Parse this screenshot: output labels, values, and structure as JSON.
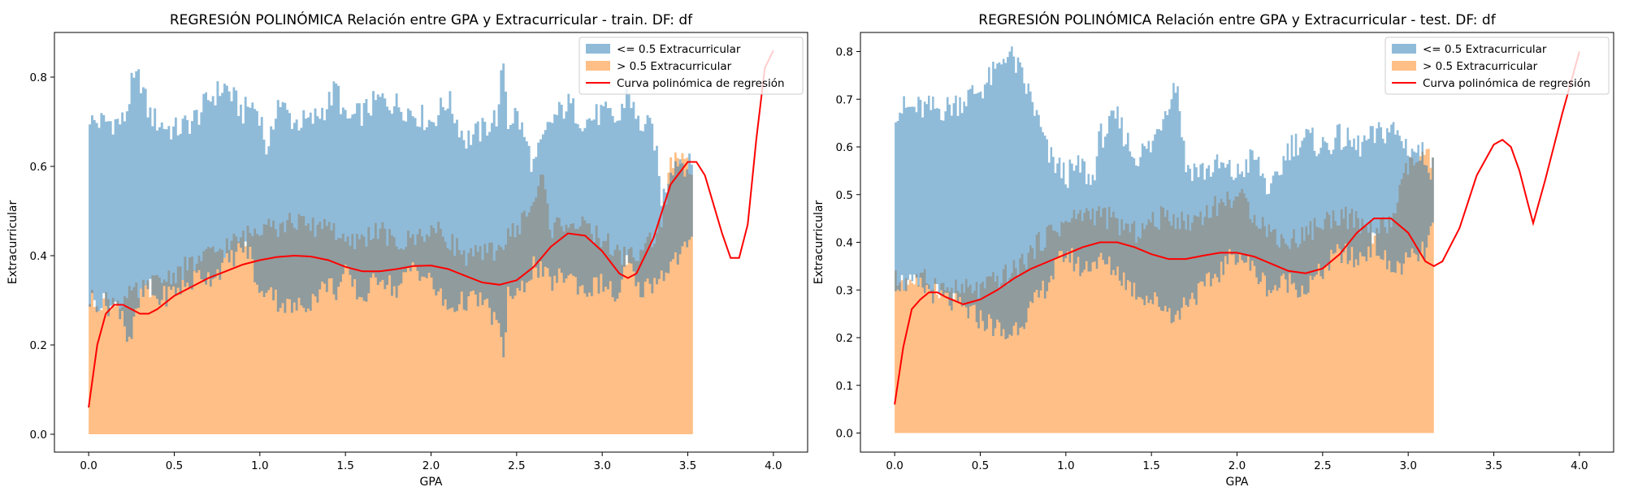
{
  "colors": {
    "blue": "#1f77b4",
    "orange": "#ff7f0e",
    "curve": "#ff0000",
    "overlap": "#c4a07a"
  },
  "chart_data": [
    {
      "type": "area",
      "title": "REGRESIÓN POLINÓMICA Relación entre GPA y Extracurricular - train. DF: df",
      "xlabel": "GPA",
      "ylabel": "Extracurricular",
      "xlim": [
        -0.2,
        4.2
      ],
      "ylim": [
        -0.04,
        0.9
      ],
      "xticks": [
        "0.0",
        "0.5",
        "1.0",
        "1.5",
        "2.0",
        "2.5",
        "3.0",
        "3.5",
        "4.0"
      ],
      "yticks": [
        "0.0",
        "0.2",
        "0.4",
        "0.6",
        "0.8"
      ],
      "grid": false,
      "legend_position": "top-right",
      "legend": [
        "<= 0.5 Extracurricular",
        "> 0.5 Extracurricular",
        "Curva polinómica de regresión"
      ],
      "x_extent": [
        0.0,
        3.53
      ],
      "series": [
        {
          "name": "<= 0.5 Extracurricular",
          "x": [
            0.0,
            0.02,
            0.2,
            0.22,
            0.25,
            0.3,
            0.35,
            0.4,
            0.5,
            0.6,
            0.65,
            0.7,
            0.8,
            0.9,
            0.95,
            1.0,
            1.05,
            1.1,
            1.2,
            1.3,
            1.4,
            1.45,
            1.5,
            1.6,
            1.7,
            1.8,
            1.9,
            2.0,
            2.1,
            2.2,
            2.3,
            2.4,
            2.42,
            2.45,
            2.5,
            2.6,
            2.7,
            2.8,
            2.9,
            3.0,
            3.1,
            3.15,
            3.2,
            3.3,
            3.35,
            3.4,
            3.45,
            3.5,
            3.53
          ],
          "upper": [
            0.72,
            0.7,
            0.7,
            0.72,
            0.78,
            0.8,
            0.72,
            0.7,
            0.68,
            0.7,
            0.72,
            0.75,
            0.78,
            0.72,
            0.74,
            0.72,
            0.62,
            0.75,
            0.7,
            0.7,
            0.74,
            0.78,
            0.7,
            0.72,
            0.75,
            0.74,
            0.72,
            0.7,
            0.75,
            0.66,
            0.68,
            0.72,
            0.86,
            0.7,
            0.72,
            0.6,
            0.7,
            0.74,
            0.7,
            0.72,
            0.7,
            0.78,
            0.7,
            0.68,
            0.52,
            0.6,
            0.62,
            0.6,
            0.6
          ],
          "lower": [
            0.3,
            0.3,
            0.28,
            0.22,
            0.22,
            0.3,
            0.33,
            0.3,
            0.32,
            0.34,
            0.36,
            0.35,
            0.38,
            0.42,
            0.4,
            0.3,
            0.34,
            0.3,
            0.28,
            0.3,
            0.34,
            0.32,
            0.36,
            0.3,
            0.36,
            0.32,
            0.38,
            0.34,
            0.28,
            0.3,
            0.3,
            0.24,
            0.15,
            0.32,
            0.3,
            0.38,
            0.34,
            0.36,
            0.32,
            0.34,
            0.3,
            0.4,
            0.32,
            0.34,
            0.36,
            0.38,
            0.4,
            0.42,
            0.42
          ]
        },
        {
          "name": "> 0.5 Extracurricular",
          "x": [
            0.0,
            0.1,
            0.2,
            0.3,
            0.4,
            0.5,
            0.6,
            0.7,
            0.8,
            0.9,
            1.0,
            1.05,
            1.1,
            1.2,
            1.3,
            1.4,
            1.5,
            1.6,
            1.7,
            1.8,
            1.9,
            2.0,
            2.1,
            2.2,
            2.3,
            2.4,
            2.5,
            2.6,
            2.65,
            2.7,
            2.8,
            2.9,
            3.0,
            3.1,
            3.2,
            3.3,
            3.35,
            3.4,
            3.45,
            3.5,
            3.53
          ],
          "upper": [
            0.3,
            0.3,
            0.3,
            0.32,
            0.34,
            0.36,
            0.38,
            0.4,
            0.42,
            0.44,
            0.46,
            0.5,
            0.46,
            0.48,
            0.46,
            0.48,
            0.42,
            0.44,
            0.46,
            0.42,
            0.44,
            0.46,
            0.44,
            0.4,
            0.4,
            0.42,
            0.46,
            0.52,
            0.58,
            0.46,
            0.48,
            0.46,
            0.44,
            0.4,
            0.4,
            0.44,
            0.48,
            0.6,
            0.62,
            0.6,
            0.58
          ]
        },
        {
          "name": "Curva polinómica de regresión",
          "x": [
            0.0,
            0.05,
            0.1,
            0.15,
            0.2,
            0.25,
            0.3,
            0.35,
            0.4,
            0.5,
            0.6,
            0.7,
            0.8,
            0.9,
            1.0,
            1.1,
            1.2,
            1.3,
            1.4,
            1.5,
            1.6,
            1.7,
            1.8,
            1.9,
            2.0,
            2.1,
            2.2,
            2.3,
            2.4,
            2.5,
            2.6,
            2.7,
            2.8,
            2.9,
            3.0,
            3.1,
            3.15,
            3.2,
            3.3,
            3.4,
            3.5,
            3.55,
            3.6,
            3.7,
            3.75,
            3.8,
            3.85,
            3.9,
            3.95,
            4.0
          ],
          "y": [
            0.06,
            0.2,
            0.27,
            0.29,
            0.29,
            0.28,
            0.27,
            0.27,
            0.28,
            0.31,
            0.33,
            0.35,
            0.365,
            0.38,
            0.39,
            0.397,
            0.4,
            0.398,
            0.39,
            0.375,
            0.365,
            0.365,
            0.37,
            0.377,
            0.378,
            0.37,
            0.355,
            0.34,
            0.335,
            0.345,
            0.375,
            0.42,
            0.45,
            0.445,
            0.41,
            0.36,
            0.35,
            0.36,
            0.44,
            0.56,
            0.61,
            0.61,
            0.58,
            0.45,
            0.395,
            0.395,
            0.47,
            0.66,
            0.82,
            0.86
          ]
        }
      ]
    },
    {
      "type": "area",
      "title": "REGRESIÓN POLINÓMICA Relación entre GPA y Extracurricular - test. DF: df",
      "xlabel": "GPA",
      "ylabel": "Extracurricular",
      "xlim": [
        -0.2,
        4.2
      ],
      "ylim": [
        -0.04,
        0.84
      ],
      "xticks": [
        "0.0",
        "0.5",
        "1.0",
        "1.5",
        "2.0",
        "2.5",
        "3.0",
        "3.5",
        "4.0"
      ],
      "yticks": [
        "0.0",
        "0.1",
        "0.2",
        "0.3",
        "0.4",
        "0.5",
        "0.6",
        "0.7",
        "0.8"
      ],
      "grid": false,
      "legend_position": "top-right",
      "legend": [
        "<= 0.5 Extracurricular",
        "> 0.5 Extracurricular",
        "Curva polinómica de regresión"
      ],
      "x_extent": [
        0.0,
        3.15
      ],
      "series": [
        {
          "name": "<= 0.5 Extracurricular",
          "x": [
            0.0,
            0.2,
            0.3,
            0.4,
            0.5,
            0.6,
            0.65,
            0.7,
            0.8,
            0.9,
            1.0,
            1.1,
            1.15,
            1.2,
            1.3,
            1.4,
            1.5,
            1.6,
            1.65,
            1.7,
            1.8,
            1.9,
            2.0,
            2.1,
            2.2,
            2.3,
            2.4,
            2.5,
            2.6,
            2.7,
            2.8,
            2.9,
            3.0,
            3.1,
            3.15
          ],
          "upper": [
            0.68,
            0.68,
            0.68,
            0.7,
            0.72,
            0.76,
            0.8,
            0.78,
            0.7,
            0.58,
            0.54,
            0.56,
            0.52,
            0.62,
            0.66,
            0.58,
            0.6,
            0.7,
            0.74,
            0.56,
            0.55,
            0.56,
            0.54,
            0.58,
            0.5,
            0.6,
            0.62,
            0.6,
            0.62,
            0.6,
            0.62,
            0.64,
            0.6,
            0.58,
            0.55
          ],
          "lower": [
            0.32,
            0.3,
            0.28,
            0.26,
            0.24,
            0.22,
            0.2,
            0.22,
            0.26,
            0.32,
            0.38,
            0.34,
            0.36,
            0.36,
            0.34,
            0.3,
            0.28,
            0.26,
            0.24,
            0.28,
            0.3,
            0.34,
            0.38,
            0.34,
            0.3,
            0.32,
            0.3,
            0.34,
            0.38,
            0.36,
            0.4,
            0.34,
            0.36,
            0.38,
            0.44
          ]
        },
        {
          "name": "> 0.5 Extracurricular",
          "x": [
            0.0,
            0.2,
            0.3,
            0.4,
            0.5,
            0.6,
            0.7,
            0.8,
            0.9,
            1.0,
            1.1,
            1.2,
            1.3,
            1.4,
            1.5,
            1.6,
            1.7,
            1.8,
            1.9,
            2.0,
            2.1,
            2.2,
            2.3,
            2.4,
            2.5,
            2.6,
            2.7,
            2.8,
            2.9,
            3.0,
            3.1,
            3.15
          ],
          "upper": [
            0.32,
            0.32,
            0.3,
            0.3,
            0.3,
            0.32,
            0.34,
            0.38,
            0.42,
            0.44,
            0.46,
            0.46,
            0.44,
            0.42,
            0.44,
            0.46,
            0.44,
            0.46,
            0.48,
            0.5,
            0.46,
            0.42,
            0.4,
            0.42,
            0.44,
            0.46,
            0.44,
            0.42,
            0.44,
            0.56,
            0.58,
            0.56
          ]
        },
        {
          "name": "Curva polinómica de regresión",
          "x": [
            0.0,
            0.05,
            0.1,
            0.15,
            0.2,
            0.25,
            0.3,
            0.4,
            0.5,
            0.6,
            0.7,
            0.8,
            0.9,
            1.0,
            1.1,
            1.2,
            1.3,
            1.4,
            1.5,
            1.6,
            1.7,
            1.8,
            1.9,
            2.0,
            2.1,
            2.2,
            2.3,
            2.4,
            2.5,
            2.6,
            2.7,
            2.8,
            2.9,
            3.0,
            3.1,
            3.15,
            3.2,
            3.3,
            3.4,
            3.5,
            3.55,
            3.6,
            3.65,
            3.7,
            3.73,
            3.8,
            3.9,
            4.0
          ],
          "y": [
            0.06,
            0.18,
            0.26,
            0.28,
            0.295,
            0.295,
            0.285,
            0.27,
            0.28,
            0.3,
            0.325,
            0.345,
            0.36,
            0.375,
            0.39,
            0.4,
            0.4,
            0.39,
            0.375,
            0.365,
            0.365,
            0.372,
            0.378,
            0.378,
            0.37,
            0.355,
            0.34,
            0.335,
            0.345,
            0.375,
            0.42,
            0.45,
            0.45,
            0.42,
            0.36,
            0.35,
            0.36,
            0.43,
            0.54,
            0.605,
            0.615,
            0.6,
            0.55,
            0.48,
            0.44,
            0.53,
            0.67,
            0.8
          ]
        }
      ]
    }
  ]
}
